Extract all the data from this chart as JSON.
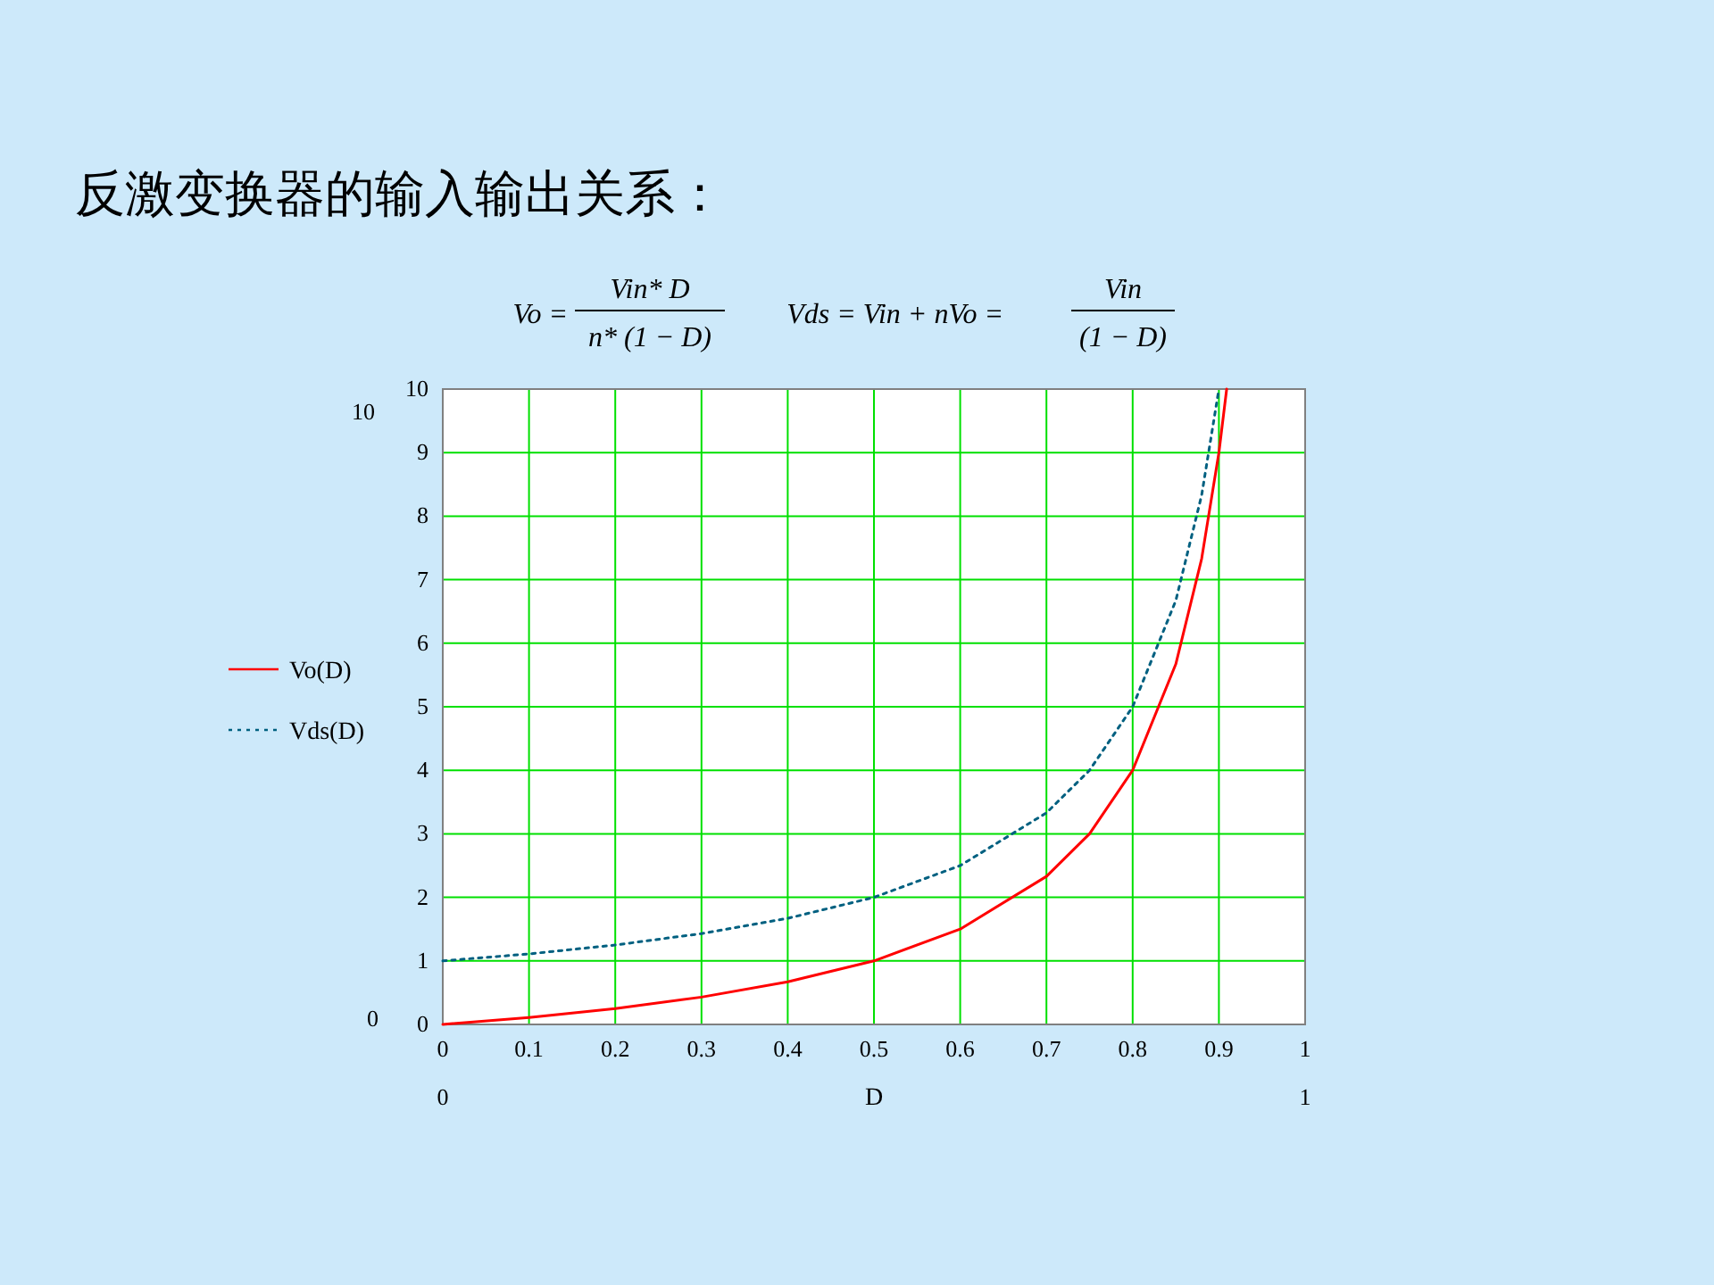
{
  "chart_data": {
    "type": "line",
    "title": "反激变换器的输入输出关系：",
    "xlabel": "D",
    "xlim": [
      0,
      1
    ],
    "xticks": [
      0,
      0.1,
      0.2,
      0.3,
      0.4,
      0.5,
      0.6,
      0.7,
      0.8,
      0.9,
      1
    ],
    "ylim": [
      0,
      10
    ],
    "yticks": [
      0,
      1,
      2,
      3,
      4,
      5,
      6,
      7,
      8,
      9,
      10
    ],
    "grid": true,
    "legend": "left",
    "series": [
      {
        "name": "Vo(D)",
        "color": "#ff0000",
        "line_style": "solid",
        "x": [
          0,
          0.1,
          0.2,
          0.3,
          0.4,
          0.5,
          0.6,
          0.7,
          0.75,
          0.8,
          0.85,
          0.88,
          0.9,
          0.909
        ],
        "values": [
          0,
          0.11,
          0.25,
          0.43,
          0.67,
          1,
          1.5,
          2.33,
          3,
          4,
          5.67,
          7.33,
          9,
          10
        ]
      },
      {
        "name": "Vds(D)",
        "color": "#006080",
        "line_style": "dotted",
        "x": [
          0,
          0.1,
          0.2,
          0.3,
          0.4,
          0.5,
          0.6,
          0.7,
          0.75,
          0.8,
          0.85,
          0.88,
          0.9
        ],
        "values": [
          1,
          1.11,
          1.25,
          1.43,
          1.67,
          2,
          2.5,
          3.33,
          4,
          5,
          6.67,
          8.33,
          10
        ]
      }
    ],
    "annotations": [
      "Vo =",
      "Vin* D",
      "n* (1 − D)",
      "Vds = Vin + nVo =",
      "Vin",
      "(1 − D)",
      "10",
      "0",
      "0",
      "1"
    ]
  }
}
